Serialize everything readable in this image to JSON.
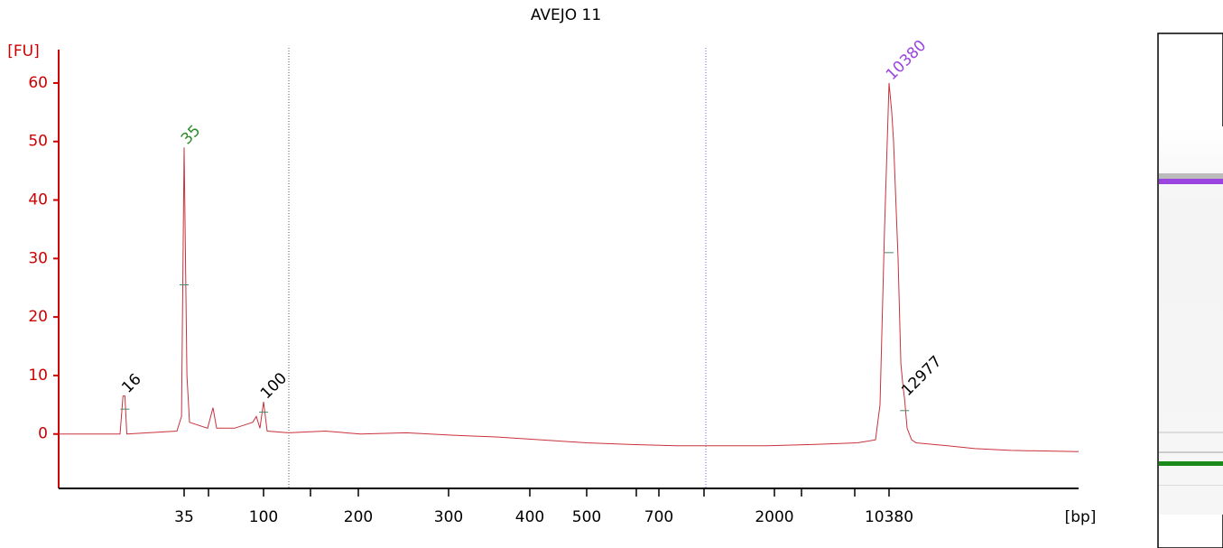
{
  "chart_data": {
    "type": "line",
    "title": "AVEJO 11",
    "ylabel": "[FU]",
    "xlabel": "[bp]",
    "log_x": true,
    "x": [
      6.7,
      10,
      13,
      15,
      15.6,
      16,
      16.4,
      31.8,
      33.8,
      35,
      36.3,
      37.6,
      47.7,
      51.3,
      53.8,
      68.2,
      86.6,
      90.9,
      95.3,
      100,
      102.7,
      120,
      157,
      202,
      248,
      303,
      355,
      419,
      500,
      617,
      824,
      1243,
      1871,
      3448,
      6592,
      8544,
      9118,
      9728,
      10380,
      10790,
      11070,
      11820,
      12300,
      12700,
      12977,
      13450,
      14360,
      15310,
      24100,
      35600,
      59800,
      158000
    ],
    "series": [
      {
        "color": "#c8323c",
        "values": [
          0,
          0,
          0,
          0,
          6.5,
          6.5,
          0,
          0.5,
          3,
          49,
          10,
          2,
          1,
          4.5,
          1,
          1,
          2,
          3,
          1,
          5.5,
          0.5,
          0.2,
          0.5,
          0,
          0.2,
          -0.2,
          -0.5,
          -1,
          -1.5,
          -1.8,
          -2,
          -2,
          -2,
          -1.8,
          -1.5,
          -1,
          5,
          35,
          60,
          55,
          50,
          30,
          12,
          8,
          6,
          1,
          -1,
          -1.5,
          -2,
          -2.5,
          -2.8,
          -3
        ]
      }
    ],
    "peaks": [
      {
        "x": 16,
        "y": 6.5,
        "color": "#000000"
      },
      {
        "x": 35,
        "y": 49,
        "color": "#2a8a2a"
      },
      {
        "x": 100,
        "y": 5.5,
        "color": "#000000"
      },
      {
        "x": 10380,
        "y": 60,
        "color": "#9b45e0"
      },
      {
        "x": 12977,
        "y": 6,
        "color": "#000000"
      }
    ],
    "xlim": [
      6.7,
      158000
    ],
    "xticks": [
      35,
      100,
      200,
      300,
      400,
      500,
      700,
      2000,
      10380
    ],
    "ylim": [
      -9.3,
      65.7
    ],
    "yticks": [
      0,
      10,
      20,
      30,
      40,
      50,
      60
    ],
    "axis_color": "#cc0000"
  }
}
